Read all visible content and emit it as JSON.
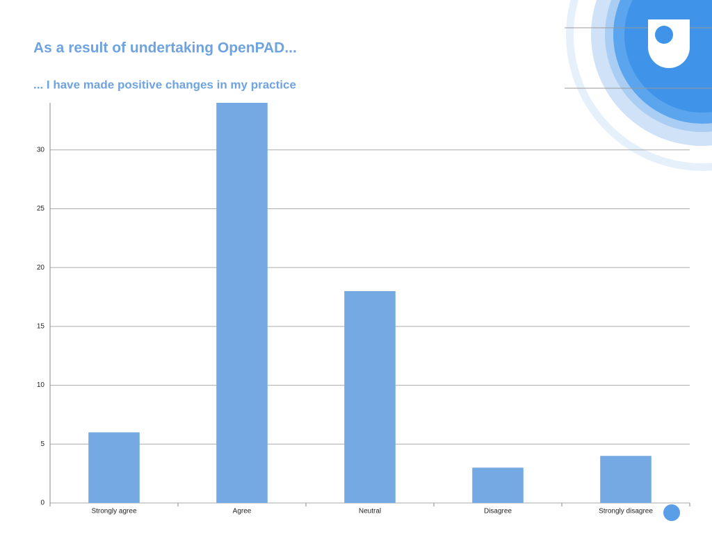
{
  "chart_data": {
    "type": "bar",
    "title": "As a result of undertaking OpenPAD...",
    "subtitle": "... I have made positive changes in my practice",
    "categories": [
      "Strongly agree",
      "Agree",
      "Neutral",
      "Disagree",
      "Strongly disagree"
    ],
    "values": [
      6,
      34,
      18,
      3,
      4
    ],
    "color": "#74a9e3",
    "ylim": [
      0,
      34
    ],
    "yticks": [
      0,
      5,
      10,
      15,
      20,
      25,
      30
    ],
    "grid": true
  }
}
